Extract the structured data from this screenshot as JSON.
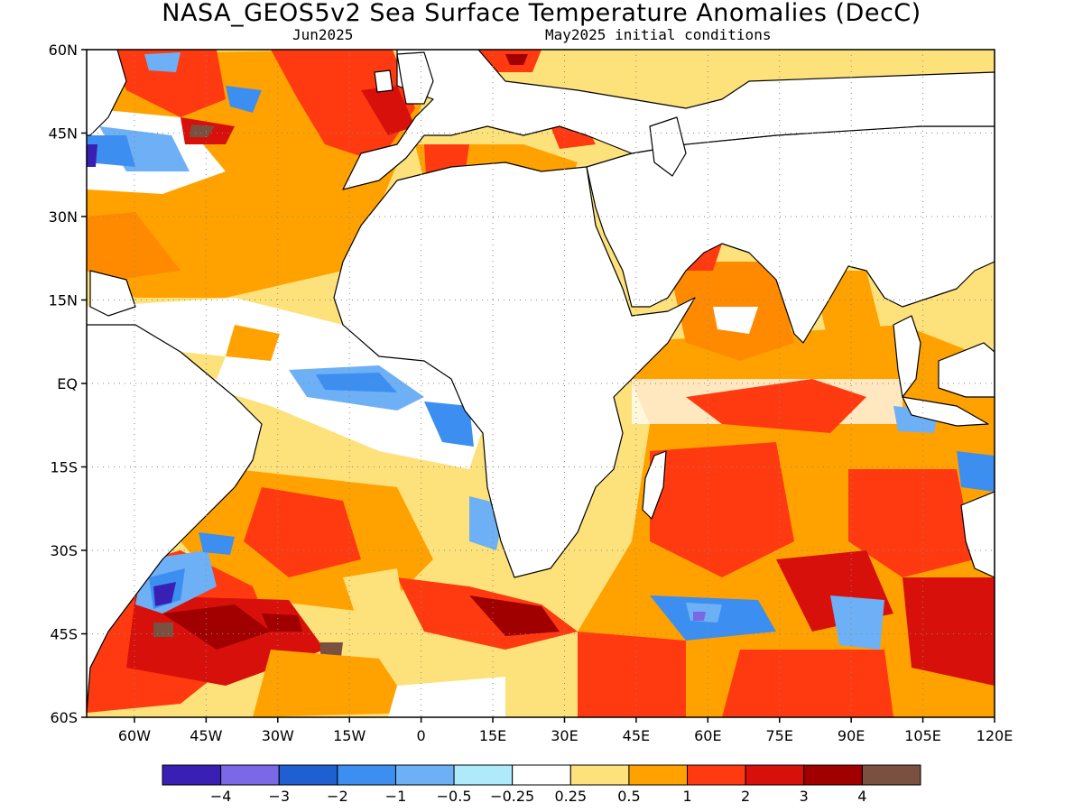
{
  "header": {
    "title": "NASA_GEOS5v2 Sea Surface Temperature Anomalies (DecC)",
    "forecast_month": "Jun2025",
    "init_conditions": "May2025 initial conditions"
  },
  "map": {
    "lat_labels": [
      "60N",
      "45N",
      "30N",
      "15N",
      "EQ",
      "15S",
      "30S",
      "45S",
      "60S"
    ],
    "lon_labels": [
      "60W",
      "45W",
      "30W",
      "15W",
      "0",
      "15E",
      "30E",
      "45E",
      "60E",
      "75E",
      "90E",
      "105E",
      "120E"
    ],
    "lon_range": [
      -70,
      120
    ],
    "lat_range": [
      -60,
      60
    ],
    "grid": "dotted",
    "land_color": "#ffffff",
    "coast_color": "#000000"
  },
  "colorbar": {
    "colors": [
      "#3a1fb4",
      "#7a68e6",
      "#1e5fd2",
      "#3c8ff0",
      "#6eb0f5",
      "#aeeafa",
      "#ffffff",
      "#fde17a",
      "#ffa200",
      "#ff3a10",
      "#d8100b",
      "#a00000",
      "#7a5040"
    ],
    "labels": [
      "−4",
      "−3",
      "−2",
      "−1",
      "−0.5",
      "−0.25",
      "0.25",
      "0.5",
      "1",
      "2",
      "3",
      "4"
    ]
  }
}
